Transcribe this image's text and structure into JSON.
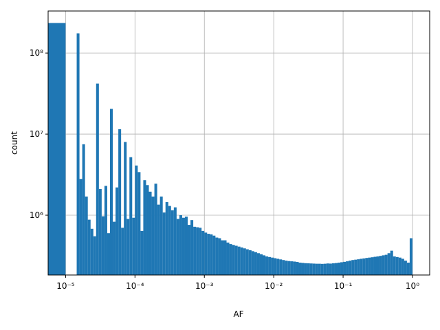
{
  "chart_data": {
    "type": "histogram",
    "xlabel": "AF",
    "ylabel": "count",
    "color": "#1f77b4",
    "xscale": "log",
    "yscale": "log",
    "grid": true,
    "xlim": [
      5.6e-06,
      1.77
    ],
    "ylim": [
      183000,
      330000000
    ],
    "xticks": [
      {
        "value": 1e-05,
        "label": "10⁻⁵"
      },
      {
        "value": 0.0001,
        "label": "10⁻⁴"
      },
      {
        "value": 0.001,
        "label": "10⁻³"
      },
      {
        "value": 0.01,
        "label": "10⁻²"
      },
      {
        "value": 0.1,
        "label": "10⁻¹"
      },
      {
        "value": 1,
        "label": "10⁰"
      }
    ],
    "yticks": [
      {
        "value": 1000000,
        "label": "10⁶"
      },
      {
        "value": 10000000,
        "label": "10⁷"
      },
      {
        "value": 100000000,
        "label": "10⁸"
      }
    ],
    "bins": [
      5.6e-06,
      1e-05,
      1.096e-05,
      1.202e-05,
      1.318e-05,
      1.445e-05,
      1.585e-05,
      1.738e-05,
      1.905e-05,
      2.089e-05,
      2.291e-05,
      2.512e-05,
      2.754e-05,
      3.02e-05,
      3.311e-05,
      3.631e-05,
      3.981e-05,
      4.365e-05,
      4.786e-05,
      5.248e-05,
      5.754e-05,
      6.31e-05,
      6.918e-05,
      7.586e-05,
      8.318e-05,
      9.12e-05,
      0.0001,
      0.0001096,
      0.0001202,
      0.0001318,
      0.0001445,
      0.0001585,
      0.0001738,
      0.0001905,
      0.0002089,
      0.0002291,
      0.0002512,
      0.0002754,
      0.000302,
      0.0003311,
      0.0003631,
      0.0003981,
      0.0004365,
      0.0004786,
      0.0005248,
      0.0005754,
      0.000631,
      0.0006918,
      0.0007586,
      0.0008318,
      0.000912,
      0.001,
      0.001096,
      0.001202,
      0.001318,
      0.001445,
      0.001585,
      0.001738,
      0.001905,
      0.002089,
      0.002291,
      0.002512,
      0.002754,
      0.00302,
      0.003311,
      0.003631,
      0.003981,
      0.004365,
      0.004786,
      0.005248,
      0.005754,
      0.00631,
      0.006918,
      0.007586,
      0.008318,
      0.00912,
      0.01,
      0.01096,
      0.01202,
      0.01318,
      0.01445,
      0.01585,
      0.01738,
      0.01905,
      0.02089,
      0.02291,
      0.02512,
      0.02754,
      0.0302,
      0.03311,
      0.03631,
      0.03981,
      0.04365,
      0.04786,
      0.05248,
      0.05754,
      0.0631,
      0.06918,
      0.07586,
      0.08318,
      0.0912,
      0.1,
      0.1096,
      0.1202,
      0.1318,
      0.1445,
      0.1585,
      0.1738,
      0.1905,
      0.2089,
      0.2291,
      0.2512,
      0.2754,
      0.302,
      0.3311,
      0.3631,
      0.3981,
      0.4365,
      0.4786,
      0.5248,
      0.5754,
      0.631,
      0.6918,
      0.7586,
      0.8318,
      0.912,
      1
    ],
    "values": [
      235000000,
      0,
      0,
      0,
      0,
      175000000,
      2800000,
      7500000,
      1700000,
      880000,
      680000,
      550000,
      42000000,
      2100000,
      970000,
      2300000,
      600000,
      20500000,
      830000,
      2200000,
      11500000,
      700000,
      8000000,
      900000,
      5200000,
      930000,
      4100000,
      3400000,
      640000,
      2700000,
      2350000,
      1950000,
      1700000,
      2450000,
      1350000,
      1700000,
      1080000,
      1450000,
      1300000,
      1150000,
      1250000,
      900000,
      1000000,
      930000,
      960000,
      760000,
      870000,
      720000,
      710000,
      700000,
      640000,
      610000,
      590000,
      580000,
      560000,
      530000,
      520000,
      490000,
      490000,
      460000,
      440000,
      430000,
      420000,
      410000,
      400000,
      390000,
      380000,
      370000,
      360000,
      350000,
      340000,
      330000,
      320000,
      310000,
      305000,
      300000,
      295000,
      290000,
      285000,
      280000,
      275000,
      272000,
      270000,
      268000,
      265000,
      260000,
      258000,
      256000,
      255000,
      254000,
      253000,
      252000,
      252000,
      251000,
      252000,
      254000,
      253000,
      255000,
      257000,
      260000,
      263000,
      266000,
      270000,
      275000,
      280000,
      283000,
      286000,
      290000,
      293000,
      297000,
      300000,
      303000,
      307000,
      310000,
      315000,
      320000,
      325000,
      340000,
      365000,
      310000,
      305000,
      300000,
      290000,
      275000,
      260000,
      520000
    ]
  }
}
